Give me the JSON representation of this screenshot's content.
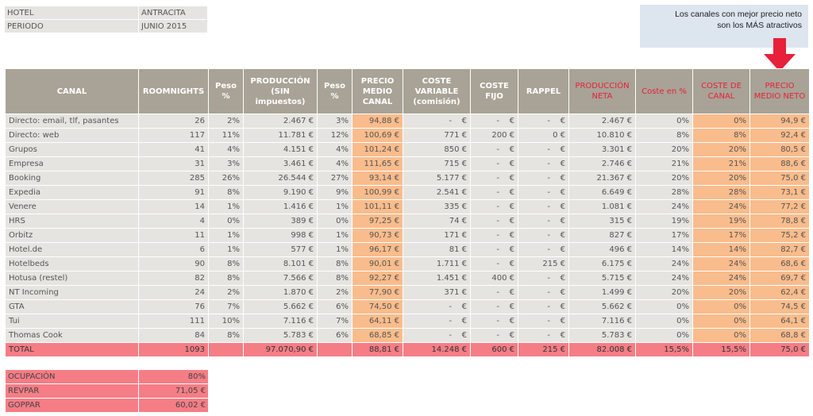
{
  "info": {
    "hotel_label": "HOTEL",
    "hotel_value": "ANTRACITA",
    "periodo_label": "PERIODO",
    "periodo_value": "JUNIO 2015"
  },
  "note": {
    "line1": "Los canales con mejor precio neto",
    "line2": "son los MÁS atractivos"
  },
  "colors": {
    "header": "#a8a396",
    "cell": "#e6e4e0",
    "highlight": "#f9bc8c",
    "total": "#f57d86",
    "red_text": "#e8203a",
    "arrow": "#e8203a",
    "note_bg": "#dde5ef"
  },
  "columns": [
    "CANAL",
    "ROOMNIGHTS",
    "Peso %",
    "PRODUCCIÓN (SIN impuestos)",
    "Peso %",
    "PRECIO MEDIO CANAL",
    "COSTE VARIABLE (comisión)",
    "COSTE FIJO",
    "RAPPEL",
    "PRODUCCIÓN NETA",
    "Coste en %",
    "COSTE DE CANAL",
    "PRECIO MEDIO NETO"
  ],
  "rows": [
    [
      "Directo: email, tlf, pasantes",
      "26",
      "2%",
      "2.467 €",
      "3%",
      "94,88 €",
      "-    €",
      "-    €",
      "-    €",
      "2.467 €",
      "0%",
      "0%",
      "94,9 €"
    ],
    [
      "Directo: web",
      "117",
      "11%",
      "11.781 €",
      "12%",
      "100,69 €",
      "771 €",
      "200 €",
      "0 €",
      "10.810 €",
      "8%",
      "8%",
      "92,4 €"
    ],
    [
      "Grupos",
      "41",
      "4%",
      "4.151 €",
      "4%",
      "101,24 €",
      "850 €",
      "-    €",
      "-    €",
      "3.301 €",
      "20%",
      "20%",
      "80,5 €"
    ],
    [
      "Empresa",
      "31",
      "3%",
      "3.461 €",
      "4%",
      "111,65 €",
      "715 €",
      "-    €",
      "-    €",
      "2.746 €",
      "21%",
      "21%",
      "88,6 €"
    ],
    [
      "Booking",
      "285",
      "26%",
      "26.544 €",
      "27%",
      "93,14 €",
      "5.177 €",
      "-    €",
      "-    €",
      "21.367 €",
      "20%",
      "20%",
      "75,0 €"
    ],
    [
      "Expedia",
      "91",
      "8%",
      "9.190 €",
      "9%",
      "100,99 €",
      "2.541 €",
      "-    €",
      "-    €",
      "6.649 €",
      "28%",
      "28%",
      "73,1 €"
    ],
    [
      "Venere",
      "14",
      "1%",
      "1.416 €",
      "1%",
      "101,11 €",
      "335 €",
      "-    €",
      "-    €",
      "1.081 €",
      "24%",
      "24%",
      "77,2 €"
    ],
    [
      "HRS",
      "4",
      "0%",
      "389 €",
      "0%",
      "97,25 €",
      "74 €",
      "-    €",
      "-    €",
      "315 €",
      "19%",
      "19%",
      "78,8 €"
    ],
    [
      "Orbitz",
      "11",
      "1%",
      "998 €",
      "1%",
      "90,73 €",
      "171 €",
      "-    €",
      "-    €",
      "827 €",
      "17%",
      "17%",
      "75,2 €"
    ],
    [
      "Hotel.de",
      "6",
      "1%",
      "577 €",
      "1%",
      "96,17 €",
      "81 €",
      "-    €",
      "-    €",
      "496 €",
      "14%",
      "14%",
      "82,7 €"
    ],
    [
      "Hotelbeds",
      "90",
      "8%",
      "8.101 €",
      "8%",
      "90,01 €",
      "1.711 €",
      "-    €",
      "215 €",
      "6.175 €",
      "24%",
      "24%",
      "68,6 €"
    ],
    [
      "Hotusa (restel)",
      "82",
      "8%",
      "7.566 €",
      "8%",
      "92,27 €",
      "1.451 €",
      "400 €",
      "-    €",
      "5.715 €",
      "24%",
      "24%",
      "69,7 €"
    ],
    [
      "NT Incoming",
      "24",
      "2%",
      "1.870 €",
      "2%",
      "77,90 €",
      "371 €",
      "-    €",
      "-    €",
      "1.499 €",
      "20%",
      "20%",
      "62,4 €"
    ],
    [
      "GTA",
      "76",
      "7%",
      "5.662 €",
      "6%",
      "74,50 €",
      "-    €",
      "-    €",
      "-    €",
      "5.662 €",
      "0%",
      "0%",
      "74,5 €"
    ],
    [
      "Tui",
      "111",
      "10%",
      "7.116 €",
      "7%",
      "64,11 €",
      "-    €",
      "-    €",
      "-    €",
      "7.116 €",
      "0%",
      "0%",
      "64,1 €"
    ],
    [
      "Thomas Cook",
      "84",
      "8%",
      "5.783 €",
      "6%",
      "68,85 €",
      "-    €",
      "-    €",
      "-    €",
      "5.783 €",
      "0%",
      "0%",
      "68,8 €"
    ]
  ],
  "total": [
    "TOTAL",
    "1093",
    "",
    "97.070,90 €",
    "",
    "88,81 €",
    "14.248 €",
    "600 €",
    "215 €",
    "82.008 €",
    "15,5%",
    "15,5%",
    "75,0 €"
  ],
  "kpis": [
    {
      "label": "OCUPACIÓN",
      "value": "80%"
    },
    {
      "label": "REVPAR",
      "value": "71,05 €"
    },
    {
      "label": "GOPPAR",
      "value": "60,02 €"
    }
  ]
}
